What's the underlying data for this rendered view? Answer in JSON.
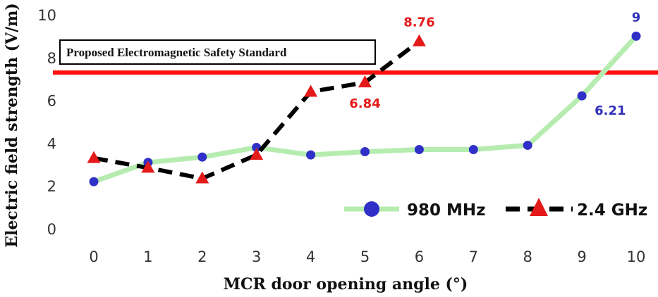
{
  "chart_data": {
    "type": "line",
    "title": "",
    "xlabel": "MCR door opening angle (°)",
    "ylabel": "Electric field strength (V/m)",
    "x": [
      0,
      1,
      2,
      3,
      4,
      5,
      6,
      7,
      8,
      9,
      10
    ],
    "x_ticks": [
      "0",
      "1",
      "2",
      "3",
      "4",
      "5",
      "6",
      "7",
      "8",
      "9",
      "10"
    ],
    "y_ticks": [
      "0",
      "2",
      "4",
      "6",
      "8",
      "10"
    ],
    "xlim": [
      -0.5,
      10.5
    ],
    "ylim": [
      0,
      10
    ],
    "grid": false,
    "legend_position": "bottom-right",
    "series": [
      {
        "name": "980 MHz",
        "x": [
          0,
          1,
          2,
          3,
          4,
          5,
          6,
          7,
          8,
          9,
          10
        ],
        "values": [
          2.2,
          3.1,
          3.35,
          3.8,
          3.45,
          3.6,
          3.7,
          3.7,
          3.9,
          6.21,
          9
        ],
        "line_color": "#b6ecb0",
        "marker_color": "#3030c8",
        "line_style": "solid",
        "marker": "circle",
        "data_labels": [
          {
            "index": 9,
            "text": "6.21"
          },
          {
            "index": 10,
            "text": "9"
          }
        ],
        "label_color": "#3030b8"
      },
      {
        "name": "2.4 GHz",
        "x": [
          0,
          1,
          2,
          3,
          4,
          5,
          6
        ],
        "values": [
          3.3,
          2.85,
          2.35,
          3.45,
          6.4,
          6.84,
          8.76
        ],
        "line_color": "#000000",
        "marker_color": "#e41a1a",
        "line_style": "dashed",
        "marker": "triangle",
        "data_labels": [
          {
            "index": 5,
            "text": "6.84"
          },
          {
            "index": 6,
            "text": "8.76"
          }
        ],
        "label_color": "#e41a1a"
      }
    ],
    "reference_line": {
      "value": 7.3,
      "label": "Proposed Electromagnetic Safety Standard",
      "color": "#ff1010"
    }
  }
}
